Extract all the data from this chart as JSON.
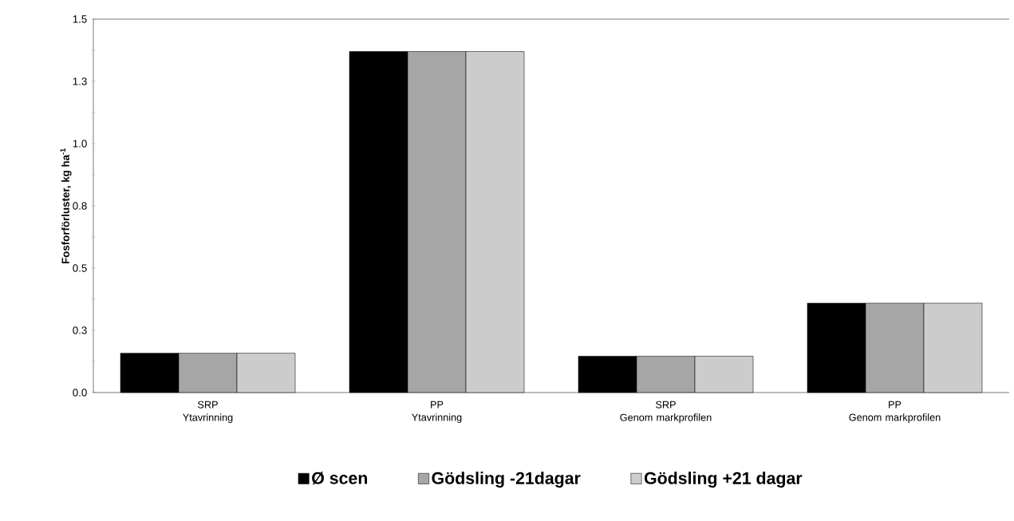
{
  "chart_data": {
    "type": "bar",
    "categories": [
      "SRP\nYtavrinning",
      "PP\nYtavrinning",
      "SRP\nGenom markprofilen",
      "PP\nGenom markprofilen"
    ],
    "ylabel": "Fosforförluster, kg ha$^{-1}$",
    "series": [
      {
        "name": "Ø scen",
        "color": "#000000",
        "values": [
          0.158,
          1.37,
          0.146,
          0.359
        ]
      },
      {
        "name": "Gödsling -21dagar",
        "color": "#a6a6a6",
        "values": [
          0.158,
          1.37,
          0.146,
          0.359
        ]
      },
      {
        "name": "Gödsling +21 dagar",
        "color": "#cccccc",
        "values": [
          0.158,
          1.37,
          0.146,
          0.359
        ]
      }
    ],
    "ylim": [
      0,
      1.5
    ],
    "yticks": [
      {
        "value": 0,
        "label": "0.0"
      },
      {
        "value": 0.125,
        "label": null
      },
      {
        "value": 0.25,
        "label": "0.3"
      },
      {
        "value": 0.375,
        "label": null
      },
      {
        "value": 0.5,
        "label": "0.5"
      },
      {
        "value": 0.625,
        "label": null
      },
      {
        "value": 0.75,
        "label": "0.8"
      },
      {
        "value": 0.875,
        "label": null
      },
      {
        "value": 1.0,
        "label": "1.0"
      },
      {
        "value": 1.125,
        "label": null
      },
      {
        "value": 1.25,
        "label": "1.3"
      },
      {
        "value": 1.375,
        "label": null
      },
      {
        "value": 1.5,
        "label": "1.5"
      }
    ],
    "grid": false,
    "legend": "bottom"
  }
}
